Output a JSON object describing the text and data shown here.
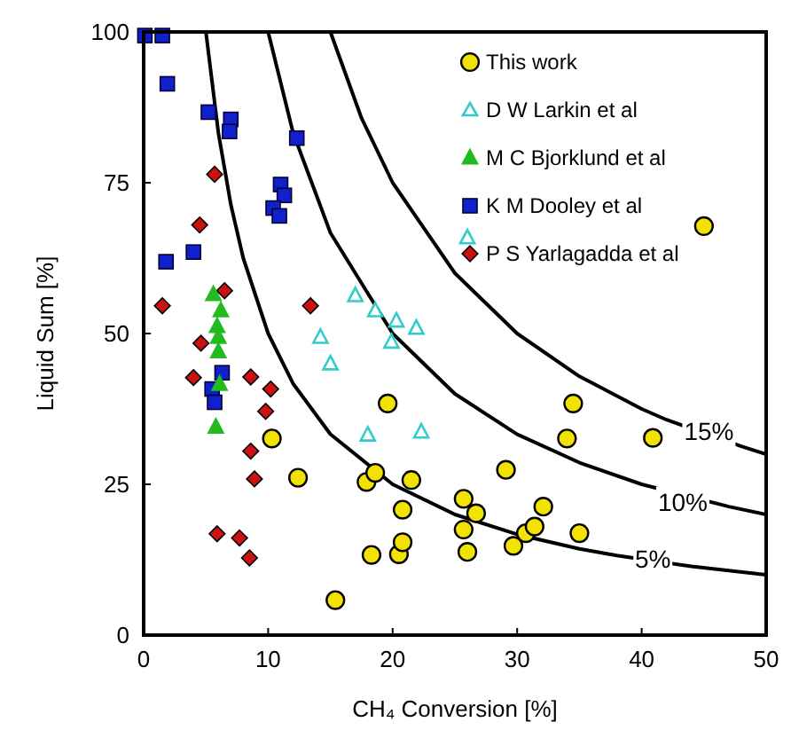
{
  "chart_data": {
    "type": "scatter",
    "xlabel": "CH₄ Conversion  [%]",
    "ylabel": "Liquid Sum  [%]",
    "xlim": [
      0,
      50
    ],
    "ylim": [
      0,
      100
    ],
    "xticks": [
      0,
      10,
      20,
      30,
      40,
      50
    ],
    "yticks": [
      0,
      25,
      50,
      75,
      100
    ],
    "grid": false,
    "legend": "top right",
    "series": [
      {
        "name": "This work",
        "marker": "circle",
        "color": "#f2e200",
        "x": [
          10.3,
          12.4,
          15.4,
          17.9,
          18.6,
          18.3,
          19.6,
          20.5,
          20.8,
          20.8,
          21.5,
          25.7,
          25.7,
          26.0,
          26.7,
          29.1,
          29.7,
          30.7,
          31.4,
          32.1,
          34.0,
          34.5,
          35.0,
          40.9,
          45.0
        ],
        "values": [
          32.6,
          26.1,
          5.8,
          25.4,
          26.9,
          13.3,
          38.4,
          13.4,
          15.4,
          20.8,
          25.7,
          22.6,
          17.5,
          13.8,
          20.2,
          27.4,
          14.8,
          16.9,
          18.0,
          21.3,
          32.6,
          38.4,
          16.9,
          32.7,
          67.8
        ]
      },
      {
        "name": "D W Larkin et al",
        "marker": "triangle",
        "color": "#33cccc",
        "x": [
          14.2,
          15.0,
          17.0,
          18.6,
          20.3,
          21.9,
          19.9,
          18.0,
          22.3,
          26.0
        ],
        "values": [
          49.4,
          45.0,
          56.3,
          53.8,
          52.1,
          50.9,
          48.6,
          33.2,
          33.7,
          65.9
        ]
      },
      {
        "name": "M C Bjorklund et al",
        "marker": "triangle",
        "color": "#22bb22",
        "x": [
          5.6,
          6.2,
          5.9,
          6.0,
          6.0,
          6.1,
          5.8
        ],
        "values": [
          56.5,
          53.8,
          51.2,
          49.4,
          47.0,
          41.6,
          34.5
        ]
      },
      {
        "name": "K M Dooley et al",
        "marker": "square",
        "color": "#1020cc",
        "x": [
          0.1,
          1.5,
          1.9,
          5.2,
          7.0,
          6.9,
          12.3,
          11.0,
          11.3,
          10.4,
          10.9,
          4.0,
          1.8,
          6.3,
          5.5,
          5.7
        ],
        "values": [
          99.4,
          99.4,
          91.4,
          86.7,
          85.5,
          83.5,
          82.4,
          74.7,
          72.9,
          70.8,
          69.5,
          63.5,
          61.9,
          43.5,
          40.8,
          38.6
        ]
      },
      {
        "name": "P S Yarlagadda et al",
        "marker": "diamond",
        "color": "#cc1111",
        "x": [
          5.7,
          4.5,
          6.5,
          1.5,
          13.4,
          4.6,
          4.0,
          8.6,
          10.2,
          9.8,
          8.6,
          8.9,
          5.9,
          7.7,
          8.5
        ],
        "values": [
          76.4,
          68.0,
          57.1,
          54.6,
          54.6,
          48.4,
          42.7,
          42.8,
          40.8,
          37.1,
          30.5,
          25.9,
          16.8,
          16.1,
          12.8
        ]
      },
      {
        "type": "line",
        "marker": "none",
        "color": "#000000",
        "x": [
          5,
          6,
          7,
          8,
          10,
          12,
          15,
          20,
          25,
          30,
          35,
          38,
          44,
          50
        ],
        "values": [
          100,
          83.3,
          71.4,
          62.5,
          50,
          41.7,
          33.3,
          25,
          20,
          16.7,
          14.3,
          13.2,
          11.4,
          10
        ]
      },
      {
        "type": "line",
        "marker": "none",
        "color": "#000000",
        "x": [
          10,
          12,
          15,
          20,
          25,
          30,
          35,
          40,
          47,
          50
        ],
        "values": [
          100,
          83.3,
          66.7,
          50,
          40,
          33.3,
          28.6,
          25,
          21.3,
          20
        ]
      },
      {
        "type": "line",
        "marker": "none",
        "color": "#000000",
        "x": [
          15,
          17.5,
          20,
          25,
          30,
          35,
          40,
          42,
          48,
          50
        ],
        "values": [
          100,
          85.7,
          75,
          60,
          50,
          42.9,
          37.5,
          35.7,
          31.3,
          30
        ]
      }
    ],
    "annotations": [
      {
        "text": "15%",
        "x": 45.4,
        "y": 33.8
      },
      {
        "text": "10%",
        "x": 43.3,
        "y": 22
      },
      {
        "text": "5%",
        "x": 40.9,
        "y": 12.6
      }
    ]
  }
}
